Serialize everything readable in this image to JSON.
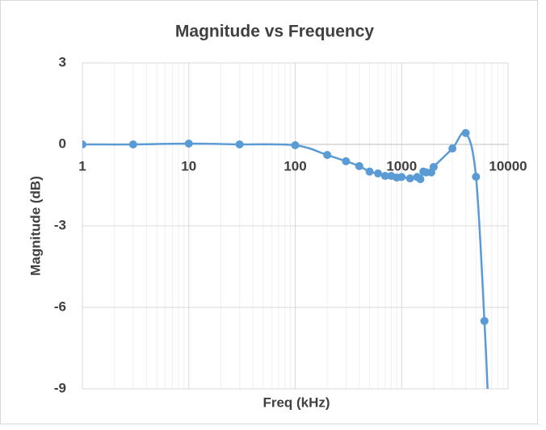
{
  "chart_data": {
    "type": "scatter",
    "title": "Magnitude vs Frequency",
    "x_label": "Freq (kHz)",
    "y_label": "Magnitude (dB)",
    "x_scale": "log",
    "smooth": true,
    "grid": true,
    "minor_grid": true,
    "xlim": [
      1,
      10000
    ],
    "xticks": [
      1,
      10,
      100,
      1000,
      10000
    ],
    "ylim": [
      -9,
      3
    ],
    "yticks": [
      3,
      0,
      -3,
      -6,
      -9
    ],
    "series": [
      {
        "name": "Magnitude",
        "color": "#5b9bd5",
        "x": [
          1,
          3,
          10,
          30,
          100,
          200,
          300,
          400,
          500,
          600,
          700,
          800,
          900,
          1000,
          1200,
          1400,
          1500,
          1600,
          1700,
          1900,
          2000,
          3000,
          4000,
          5000,
          6000,
          6500
        ],
        "values": [
          0,
          0,
          0.03,
          0,
          -0.03,
          -0.39,
          -0.62,
          -0.8,
          -1.0,
          -1.07,
          -1.16,
          -1.16,
          -1.22,
          -1.2,
          -1.25,
          -1.2,
          -1.28,
          -1.0,
          -1.03,
          -1.03,
          -0.83,
          -0.15,
          0.42,
          -1.19,
          -6.5,
          -9.5
        ]
      }
    ]
  }
}
